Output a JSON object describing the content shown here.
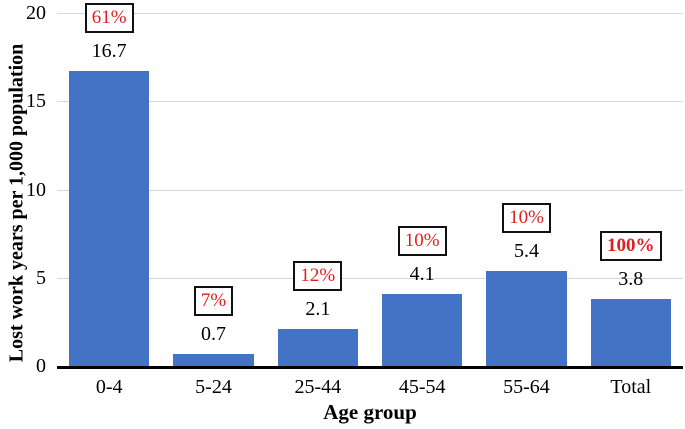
{
  "chart_data": {
    "type": "bar",
    "title": "",
    "xlabel": "Age group",
    "ylabel": "Lost work years per 1,000 population",
    "categories": [
      "0-4",
      "5-24",
      "25-44",
      "45-54",
      "55-64",
      "Total"
    ],
    "values": [
      16.7,
      0.7,
      2.1,
      4.1,
      5.4,
      3.8
    ],
    "value_labels": [
      "16.7",
      "0.7",
      "2.1",
      "4.1",
      "5.4",
      "3.8"
    ],
    "annotations": [
      {
        "label": "61%",
        "bold": false
      },
      {
        "label": "7%",
        "bold": false
      },
      {
        "label": "12%",
        "bold": false
      },
      {
        "label": "10%",
        "bold": false
      },
      {
        "label": "10%",
        "bold": false
      },
      {
        "label": "100%",
        "bold": true
      }
    ],
    "ylim": [
      0,
      20
    ],
    "yticks": [
      0,
      5,
      10,
      15,
      20
    ],
    "grid": true,
    "legend": false,
    "colors": {
      "bar": "#4472C4",
      "annotation_text": "#DE1F1F",
      "annotation_border": "#111111",
      "gridline": "#D6D6D6",
      "axis": "#000000"
    }
  }
}
